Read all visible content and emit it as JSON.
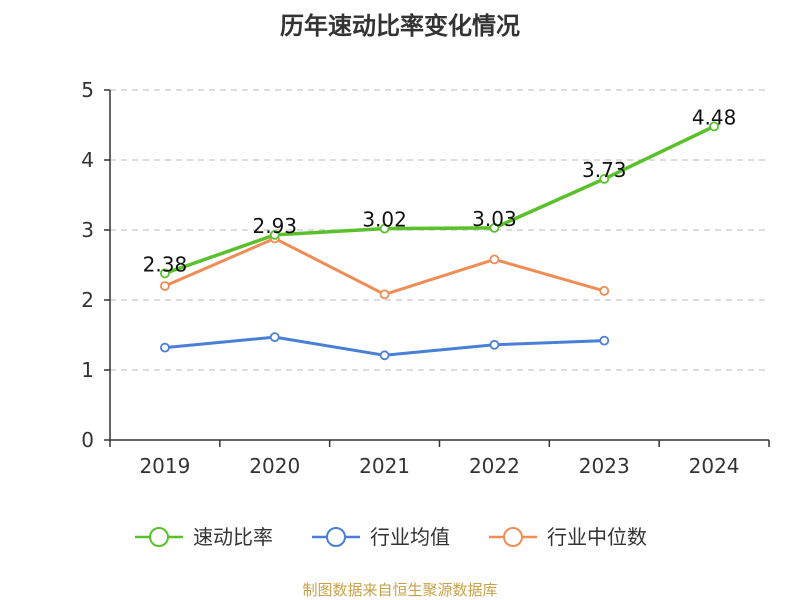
{
  "chart_data": {
    "type": "line",
    "title": "历年速动比率变化情况",
    "xlabel": "",
    "ylabel": "",
    "categories": [
      "2019",
      "2020",
      "2021",
      "2022",
      "2023",
      "2024"
    ],
    "ylim": [
      0,
      5
    ],
    "yticks": [
      0,
      1,
      2,
      3,
      4,
      5
    ],
    "grid": true,
    "legend_position": "bottom",
    "series": [
      {
        "name": "速动比率",
        "color": "#5ac02b",
        "values": [
          2.38,
          2.93,
          3.02,
          3.03,
          3.73,
          4.48
        ],
        "labels": [
          "2.38",
          "2.93",
          "3.02",
          "3.03",
          "3.73",
          "4.48"
        ]
      },
      {
        "name": "行业均值",
        "color": "#4a7fd8",
        "values": [
          1.32,
          1.47,
          1.21,
          1.36,
          1.42,
          null
        ]
      },
      {
        "name": "行业中位数",
        "color": "#f08c55",
        "values": [
          2.2,
          2.88,
          2.08,
          2.58,
          2.13,
          null
        ]
      }
    ]
  },
  "footer": {
    "source": "制图数据来自恒生聚源数据库"
  }
}
